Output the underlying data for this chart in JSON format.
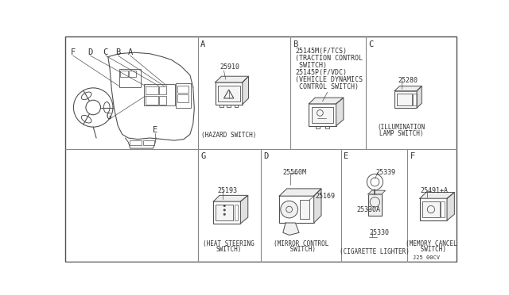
{
  "bg_color": "#ffffff",
  "line_color": "#505050",
  "text_color": "#303030",
  "grid_color": "#888888",
  "font_size_small": 5.5,
  "font_size_label": 7.5,
  "font_size_part": 6.0,
  "sections": {
    "A_label": "A",
    "A_part": "25910",
    "A_caption": "(HAZARD SWITCH)",
    "B_label": "B",
    "B_text1": "25145M(F/TCS)",
    "B_text2": "(TRACTION CONTROL",
    "B_text3": " SWITCH)",
    "B_text4": "25145P(F/VDC)",
    "B_text5": "(VEHICLE DYNAMICS",
    "B_text6": " CONTROL SWITCH)",
    "C_label": "C",
    "C_part": "25280",
    "C_caption1": "(ILLUMINATION",
    "C_caption2": "LAMP SWITCH)",
    "G_label": "G",
    "G_part": "25193",
    "G_caption1": "(HEAT STEERING",
    "G_caption2": "SWITCH)",
    "D_label": "D",
    "D_part1": "25560M",
    "D_part2": "25169",
    "D_caption1": "(MIRROR CONTROL",
    "D_caption2": " SWITCH)",
    "E_label": "E",
    "E_part1": "25339",
    "E_part2": "25330A",
    "E_part3": "25330",
    "E_caption": "(CIGARETTE LIGHTER)",
    "F_label": "F",
    "F_part": "25491+A",
    "F_caption1": "(MEMORY CANCEL",
    "F_caption2": " SWITCH)",
    "footer": "J25 00CV"
  }
}
